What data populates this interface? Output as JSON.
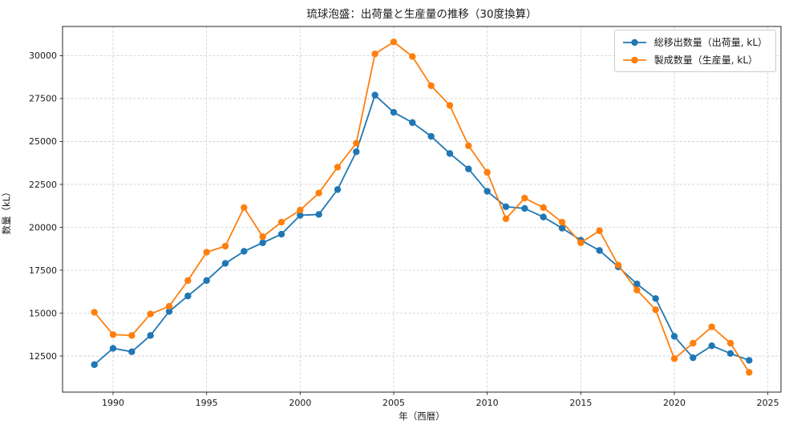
{
  "figure": {
    "background": "#ffffff"
  },
  "chart_data": {
    "type": "line",
    "title": "琉球泡盛：出荷量と生産量の推移（30度換算）",
    "xlabel": "年（西暦）",
    "ylabel": "数量（kL）",
    "x": [
      1989,
      1990,
      1991,
      1992,
      1993,
      1994,
      1995,
      1996,
      1997,
      1998,
      1999,
      2000,
      2001,
      2002,
      2003,
      2004,
      2005,
      2006,
      2007,
      2008,
      2009,
      2010,
      2011,
      2012,
      2013,
      2014,
      2015,
      2016,
      2017,
      2018,
      2019,
      2020,
      2021,
      2022,
      2023,
      2024
    ],
    "series": [
      {
        "name": "総移出数量（出荷量, kL）",
        "color": "#1f77b4",
        "values": [
          12000,
          12950,
          12750,
          13700,
          15100,
          16000,
          16900,
          17900,
          18600,
          19100,
          19600,
          20700,
          20750,
          22200,
          24400,
          27700,
          26700,
          26100,
          25300,
          24300,
          23400,
          22100,
          21200,
          21100,
          20600,
          19950,
          19250,
          18650,
          17700,
          16700,
          15850,
          13650,
          12400,
          13100,
          12650,
          12250
        ]
      },
      {
        "name": "製成数量（生産量, kL）",
        "color": "#ff7f0e",
        "values": [
          15050,
          13750,
          13700,
          14950,
          15400,
          16900,
          18550,
          18900,
          21150,
          19450,
          20300,
          21000,
          22000,
          23500,
          24900,
          30100,
          30800,
          29950,
          28250,
          27100,
          24750,
          23200,
          20500,
          21700,
          21150,
          20300,
          19100,
          19800,
          17800,
          16350,
          15200,
          12350,
          13250,
          14200,
          13250,
          11550
        ]
      }
    ],
    "xlim": [
      1987.3,
      2025.7
    ],
    "ylim": [
      10400,
      31700
    ],
    "xticks": [
      1990,
      1995,
      2000,
      2005,
      2010,
      2015,
      2020,
      2025
    ],
    "yticks": [
      12500,
      15000,
      17500,
      20000,
      22500,
      25000,
      27500,
      30000
    ],
    "grid": true,
    "grid_style": "dashed",
    "grid_color": "#c6c6c6",
    "spine_color": "#262626",
    "legend_position": "upper right"
  }
}
